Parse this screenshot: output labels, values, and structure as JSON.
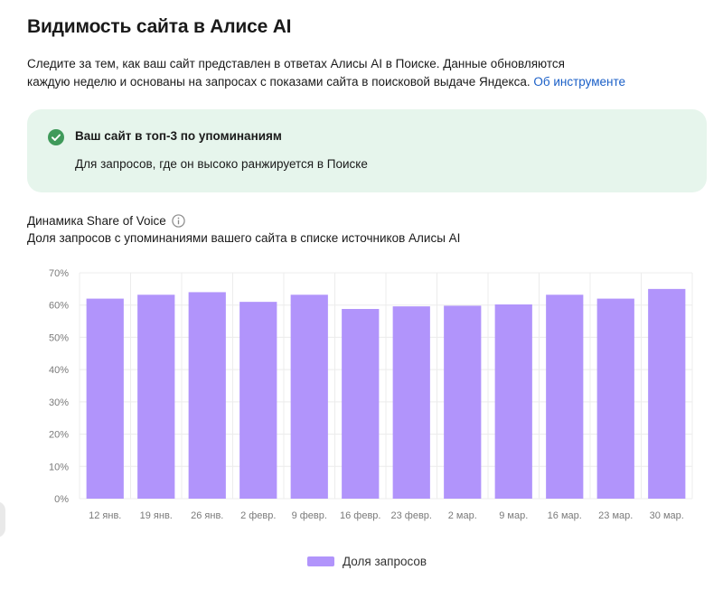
{
  "header": {
    "title": "Видимость сайта в Алисе AI",
    "description_line1": "Следите за тем, как ваш сайт представлен в ответах Алисы AI в Поиске. Данные обновляются",
    "description_line2": "каждую неделю и основаны на запросах с показами сайта в поисковой выдаче Яндекса.",
    "about_link": "Об инструменте"
  },
  "banner": {
    "title": "Ваш сайт в топ-3 по упоминаниям",
    "subtitle": "Для запросов, где он высоко ранжируется в Поиске",
    "icon": "check-circle-icon",
    "background": "#e6f5ec",
    "icon_color": "#3f9a5a"
  },
  "chart_section": {
    "title": "Динамика Share of Voice",
    "subtitle": "Доля запросов с упоминаниями вашего сайта в списке источников Алисы AI",
    "info_icon": "info-icon"
  },
  "chart_data": {
    "type": "bar",
    "categories": [
      "12 янв.",
      "19 янв.",
      "26 янв.",
      "2 февр.",
      "9 февр.",
      "16 февр.",
      "23 февр.",
      "2 мар.",
      "9 мар.",
      "16 мар.",
      "23 мар.",
      "30 мар."
    ],
    "series": [
      {
        "name": "Доля запросов",
        "values": [
          62,
          63.2,
          64,
          61,
          63.2,
          58.8,
          59.6,
          59.8,
          60.2,
          63.2,
          62,
          65
        ],
        "color": "#b194fb"
      }
    ],
    "yticks": [
      "0%",
      "10%",
      "20%",
      "30%",
      "40%",
      "50%",
      "60%",
      "70%"
    ],
    "ylim": [
      0,
      70
    ],
    "grid": true,
    "legend": "bottom-center"
  }
}
